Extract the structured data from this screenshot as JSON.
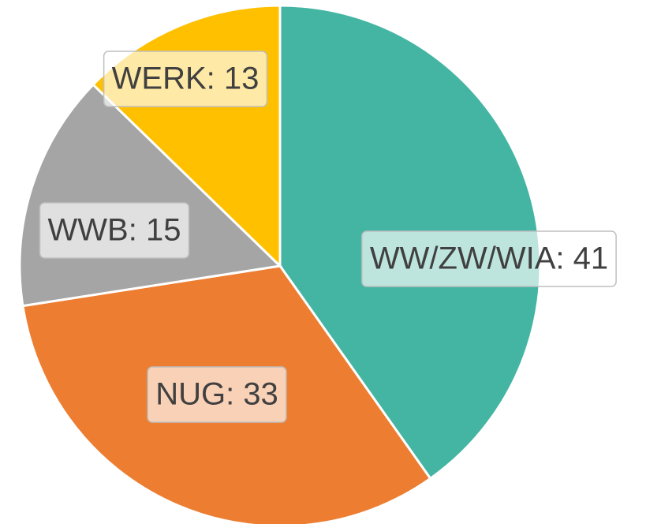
{
  "chart_data": {
    "type": "pie",
    "values": [
      41,
      33,
      15,
      13
    ],
    "value_labels": [
      "WW/ZW/WIA: 41",
      "NUG: 33",
      "WWB: 15",
      "WERK: 13"
    ],
    "colors": [
      "#43b5a2",
      "#ed7d31",
      "#a5a5a5",
      "#ffc000"
    ]
  }
}
